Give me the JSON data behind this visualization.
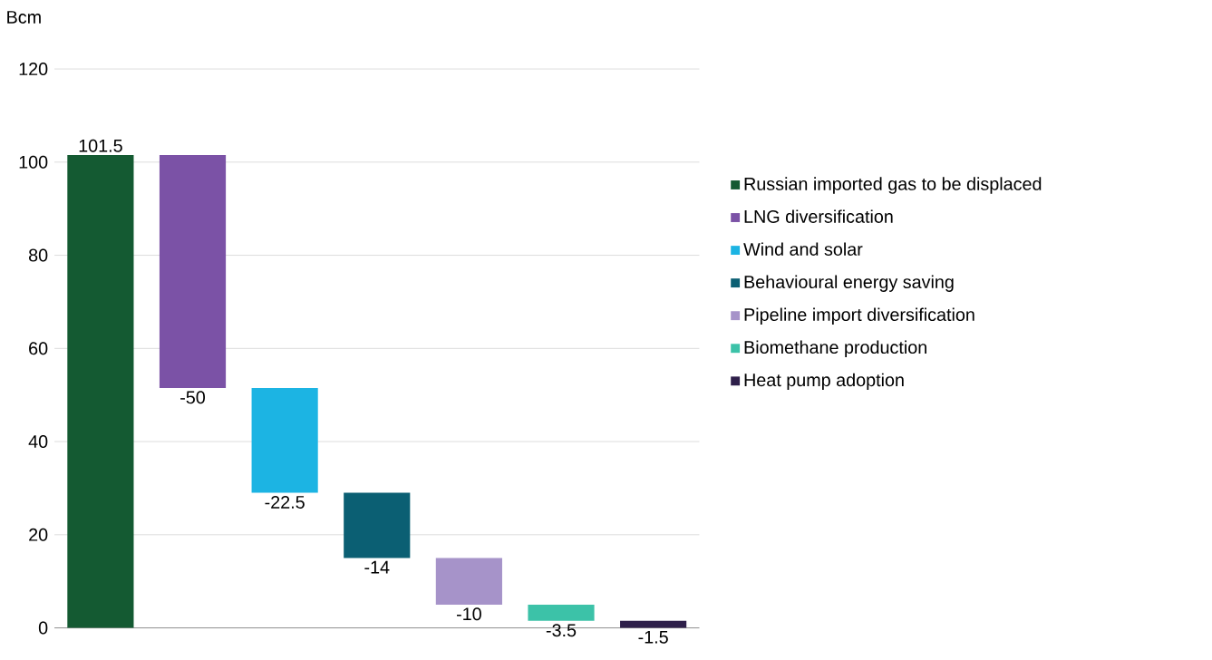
{
  "chart_data": {
    "type": "bar",
    "ylabel": "Bcm",
    "categories": [
      null,
      null,
      null,
      null,
      null,
      null,
      null
    ],
    "series": [
      {
        "name": "Russian imported gas to be displaced",
        "color": "#145a32",
        "values": [
          101.5,
          null,
          null,
          null,
          null,
          null,
          null
        ],
        "base": [
          0,
          null,
          null,
          null,
          null,
          null,
          null
        ]
      },
      {
        "name": "LNG diversification",
        "color": "#7b52a6",
        "values": [
          null,
          -50,
          null,
          null,
          null,
          null,
          null
        ],
        "base": [
          null,
          101.5,
          null,
          null,
          null,
          null,
          null
        ]
      },
      {
        "name": "Wind and solar",
        "color": "#1cb4e3",
        "values": [
          null,
          null,
          -22.5,
          null,
          null,
          null,
          null
        ],
        "base": [
          null,
          null,
          51.5,
          null,
          null,
          null,
          null
        ]
      },
      {
        "name": "Behavioural energy saving",
        "color": "#0b5f73",
        "values": [
          null,
          null,
          null,
          -14,
          null,
          null,
          null
        ],
        "base": [
          null,
          null,
          null,
          29,
          null,
          null,
          null
        ]
      },
      {
        "name": "Pipeline import diversification",
        "color": "#a693c9",
        "values": [
          null,
          null,
          null,
          null,
          -10,
          null,
          null
        ],
        "base": [
          null,
          null,
          null,
          null,
          15,
          null,
          null
        ]
      },
      {
        "name": "Biomethane production",
        "color": "#3cc2a8",
        "values": [
          null,
          null,
          null,
          null,
          null,
          -3.5,
          null
        ],
        "base": [
          null,
          null,
          null,
          null,
          null,
          5,
          null
        ]
      },
      {
        "name": "Heat pump adoption",
        "color": "#2e1f4a",
        "values": [
          null,
          null,
          null,
          null,
          null,
          null,
          -1.5
        ],
        "base": [
          null,
          null,
          null,
          null,
          null,
          null,
          1.5
        ]
      }
    ],
    "ylim": [
      0,
      120
    ],
    "yticks": [
      0,
      20,
      40,
      60,
      80,
      100,
      120
    ],
    "grid": "y",
    "legend": "right",
    "data_labels": true
  }
}
